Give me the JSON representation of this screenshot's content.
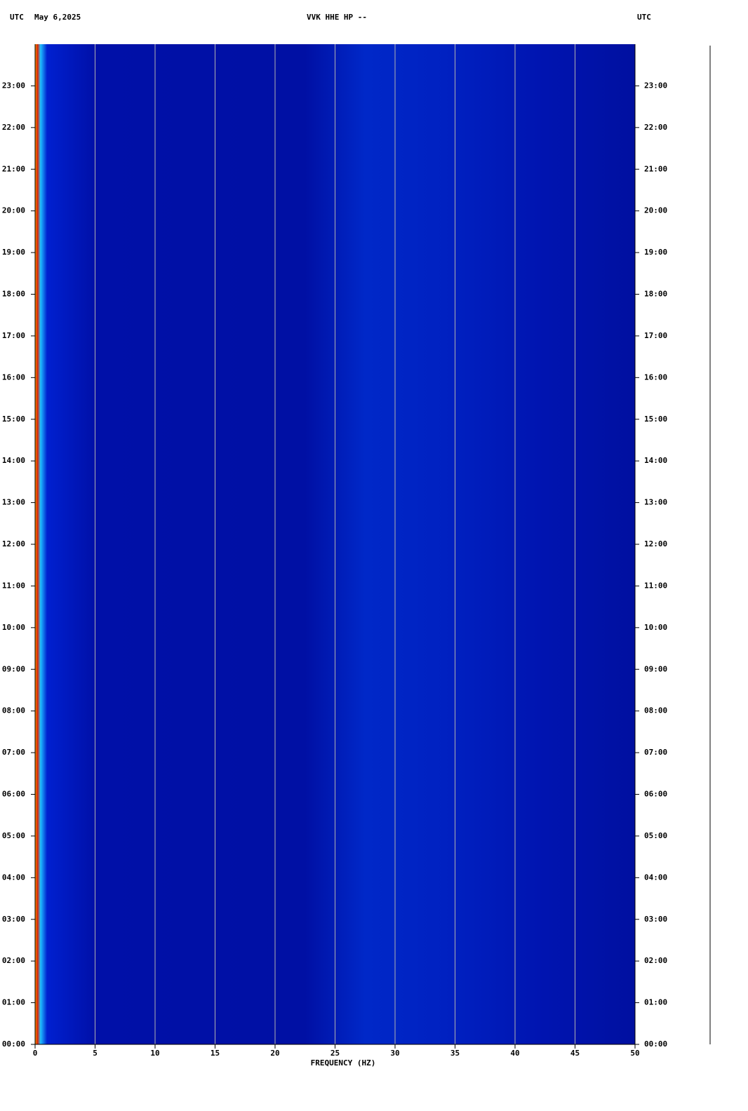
{
  "chart_data": {
    "type": "spectrogram",
    "title": "VVK HHE HP --",
    "date": "May 6,2025",
    "left_timezone": "UTC",
    "right_timezone": "UTC",
    "xlabel": "FREQUENCY (HZ)",
    "xlim": [
      0,
      50
    ],
    "xticks": [
      0,
      5,
      10,
      15,
      20,
      25,
      30,
      35,
      40,
      45,
      50
    ],
    "ylim": [
      0,
      24
    ],
    "yticks": [
      {
        "value": 0,
        "label": "00:00"
      },
      {
        "value": 1,
        "label": "01:00"
      },
      {
        "value": 2,
        "label": "02:00"
      },
      {
        "value": 3,
        "label": "03:00"
      },
      {
        "value": 4,
        "label": "04:00"
      },
      {
        "value": 5,
        "label": "05:00"
      },
      {
        "value": 6,
        "label": "06:00"
      },
      {
        "value": 7,
        "label": "07:00"
      },
      {
        "value": 8,
        "label": "08:00"
      },
      {
        "value": 9,
        "label": "09:00"
      },
      {
        "value": 10,
        "label": "10:00"
      },
      {
        "value": 11,
        "label": "11:00"
      },
      {
        "value": 12,
        "label": "12:00"
      },
      {
        "value": 13,
        "label": "13:00"
      },
      {
        "value": 14,
        "label": "14:00"
      },
      {
        "value": 15,
        "label": "15:00"
      },
      {
        "value": 16,
        "label": "16:00"
      },
      {
        "value": 17,
        "label": "17:00"
      },
      {
        "value": 18,
        "label": "18:00"
      },
      {
        "value": 19,
        "label": "19:00"
      },
      {
        "value": 20,
        "label": "20:00"
      },
      {
        "value": 21,
        "label": "21:00"
      },
      {
        "value": 22,
        "label": "22:00"
      },
      {
        "value": 23,
        "label": "23:00"
      }
    ],
    "grid": true,
    "grid_color": "#b0b0b0"
  }
}
